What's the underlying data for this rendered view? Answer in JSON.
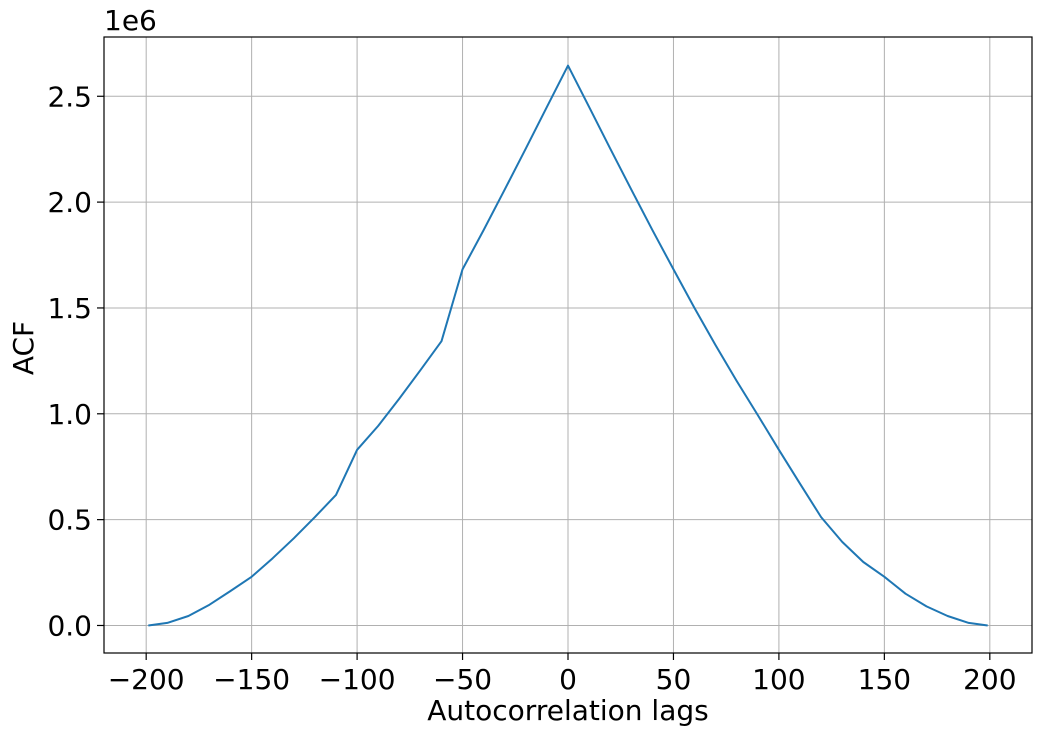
{
  "chart_data": {
    "type": "line",
    "title": "",
    "xlabel": "Autocorrelation lags",
    "ylabel": "ACF",
    "y_offset_label": "1e6",
    "xlim": [
      -220,
      220
    ],
    "ylim": [
      -0.13,
      2.78
    ],
    "y_multiplier": 1000000,
    "grid": true,
    "legend": "none",
    "colors": {
      "series": "#1f77b4",
      "grid": "#b0b0b0",
      "axis": "#000000"
    },
    "x_ticks": [
      {
        "value": -200,
        "label": "−200"
      },
      {
        "value": -150,
        "label": "−150"
      },
      {
        "value": -100,
        "label": "−100"
      },
      {
        "value": -50,
        "label": "−50"
      },
      {
        "value": 0,
        "label": "0"
      },
      {
        "value": 50,
        "label": "50"
      },
      {
        "value": 100,
        "label": "100"
      },
      {
        "value": 150,
        "label": "150"
      },
      {
        "value": 200,
        "label": "200"
      }
    ],
    "y_ticks": [
      {
        "value": 0.0,
        "label": "0.0"
      },
      {
        "value": 0.5,
        "label": "0.5"
      },
      {
        "value": 1.0,
        "label": "1.0"
      },
      {
        "value": 1.5,
        "label": "1.5"
      },
      {
        "value": 2.0,
        "label": "2.0"
      },
      {
        "value": 2.5,
        "label": "2.5"
      }
    ],
    "series": [
      {
        "x": [
          -199,
          -190,
          -180,
          -170,
          -160,
          -150,
          -140,
          -130,
          -120,
          -110,
          -100,
          -90,
          -80,
          -70,
          -60,
          -50,
          -40,
          -30,
          -20,
          -10,
          0,
          10,
          20,
          30,
          40,
          50,
          60,
          70,
          80,
          90,
          100,
          110,
          120,
          130,
          140,
          150,
          160,
          170,
          180,
          190,
          199
        ],
        "y": [
          0.0,
          0.012,
          0.045,
          0.098,
          0.163,
          0.23,
          0.318,
          0.412,
          0.512,
          0.617,
          0.83,
          0.943,
          1.072,
          1.206,
          1.343,
          1.682,
          1.868,
          2.059,
          2.253,
          2.45,
          2.645,
          2.45,
          2.253,
          2.059,
          1.868,
          1.682,
          1.5,
          1.324,
          1.155,
          0.994,
          0.83,
          0.67,
          0.512,
          0.395,
          0.3,
          0.23,
          0.15,
          0.09,
          0.045,
          0.012,
          0.0
        ]
      }
    ]
  }
}
